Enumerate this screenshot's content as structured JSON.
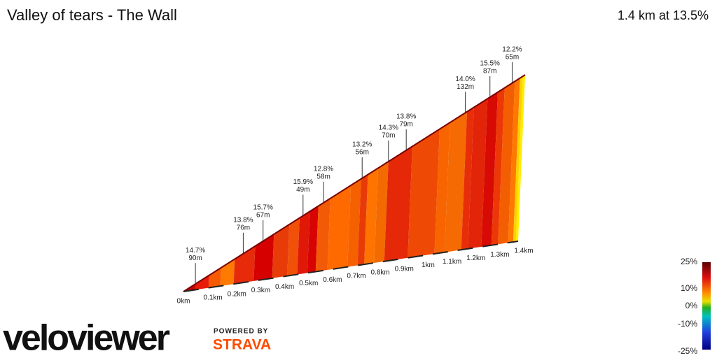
{
  "header": {
    "title": "Valley of tears - The Wall",
    "summary": "1.4 km at 13.5%"
  },
  "profile": {
    "distance_labels": [
      "0km",
      "0.1km",
      "0.2km",
      "0.3km",
      "0.4km",
      "0.5km",
      "0.6km",
      "0.7km",
      "0.8km",
      "0.9km",
      "1km",
      "1.1km",
      "1.2km",
      "1.3km",
      "1.4km"
    ],
    "annotations": [
      {
        "grade": "14.7%",
        "length": "90m"
      },
      {
        "grade": "13.8%",
        "length": "76m"
      },
      {
        "grade": "15.7%",
        "length": "67m"
      },
      {
        "grade": "15.9%",
        "length": "49m"
      },
      {
        "grade": "12.8%",
        "length": "58m"
      },
      {
        "grade": "13.2%",
        "length": "56m"
      },
      {
        "grade": "14.3%",
        "length": "70m"
      },
      {
        "grade": "13.8%",
        "length": "79m"
      },
      {
        "grade": "14.0%",
        "length": "132m"
      },
      {
        "grade": "15.5%",
        "length": "87m"
      },
      {
        "grade": "12.2%",
        "length": "65m"
      }
    ]
  },
  "legend": {
    "labels": [
      "25%",
      "10%",
      "0%",
      "-10%",
      "-25%"
    ]
  },
  "branding": {
    "logo": "veloviewer",
    "powered": "POWERED BY",
    "strava": "STRAVA"
  }
}
